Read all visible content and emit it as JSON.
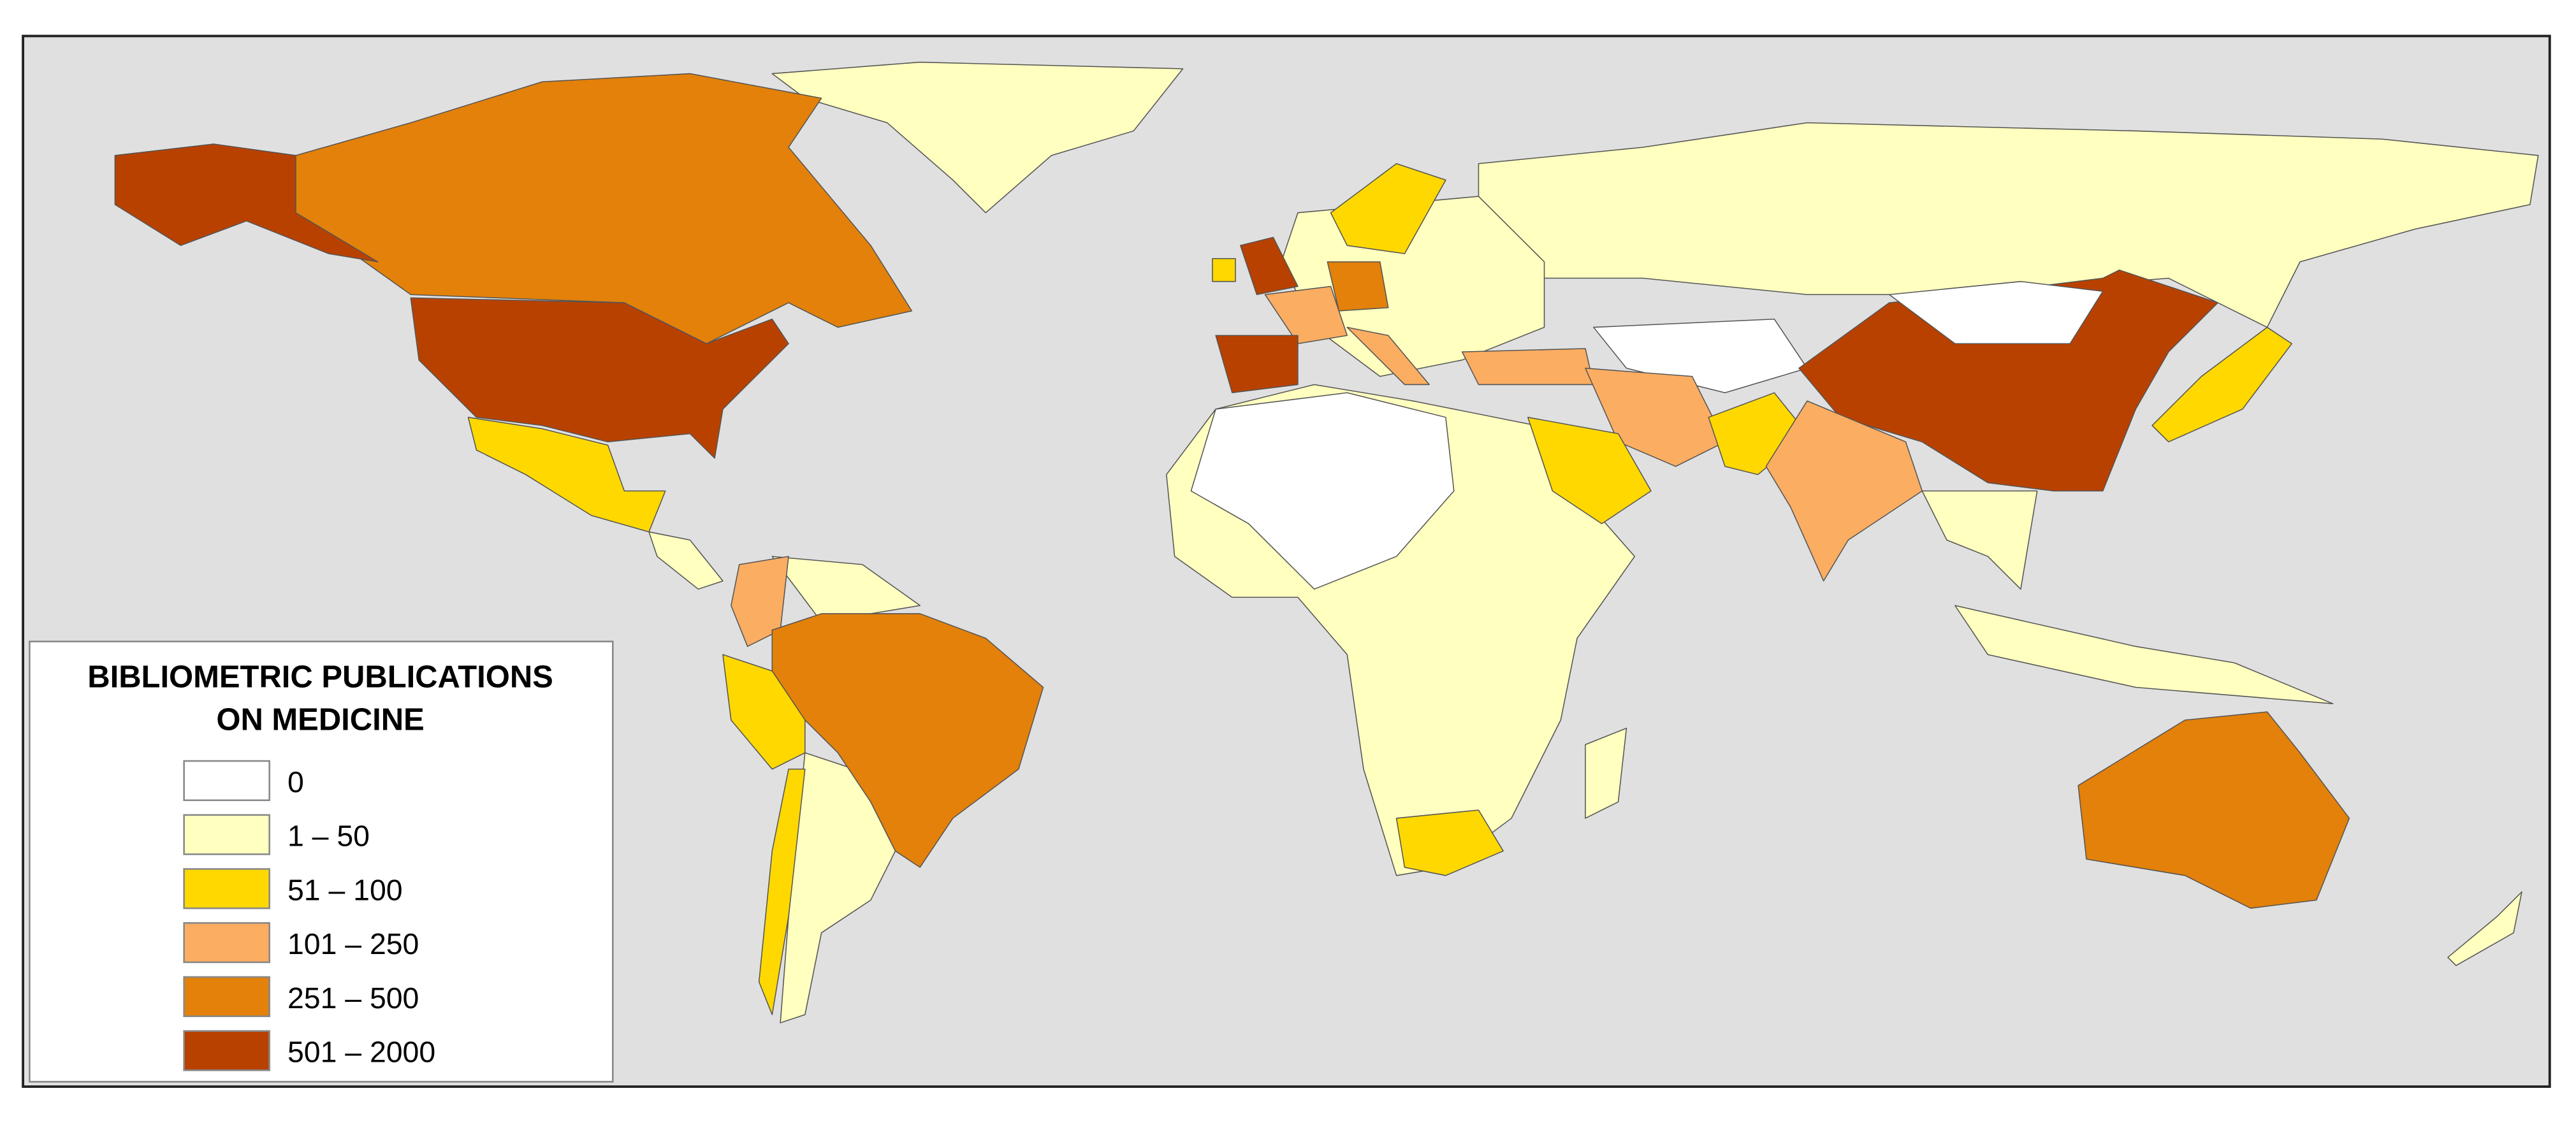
{
  "legend": {
    "title": [
      "BIBLIOMETRIC PUBLICATIONS",
      "ON MEDICINE"
    ],
    "items": [
      {
        "label": "0",
        "color": "#ffffff"
      },
      {
        "label": "1 – 50",
        "color": "#ffffc0"
      },
      {
        "label": "51 – 100",
        "color": "#ffd800"
      },
      {
        "label": "101 – 250",
        "color": "#fbad62"
      },
      {
        "label": "251 – 500",
        "color": "#e3810a"
      },
      {
        "label": "501 – 2000",
        "color": "#b94100"
      }
    ]
  }
}
